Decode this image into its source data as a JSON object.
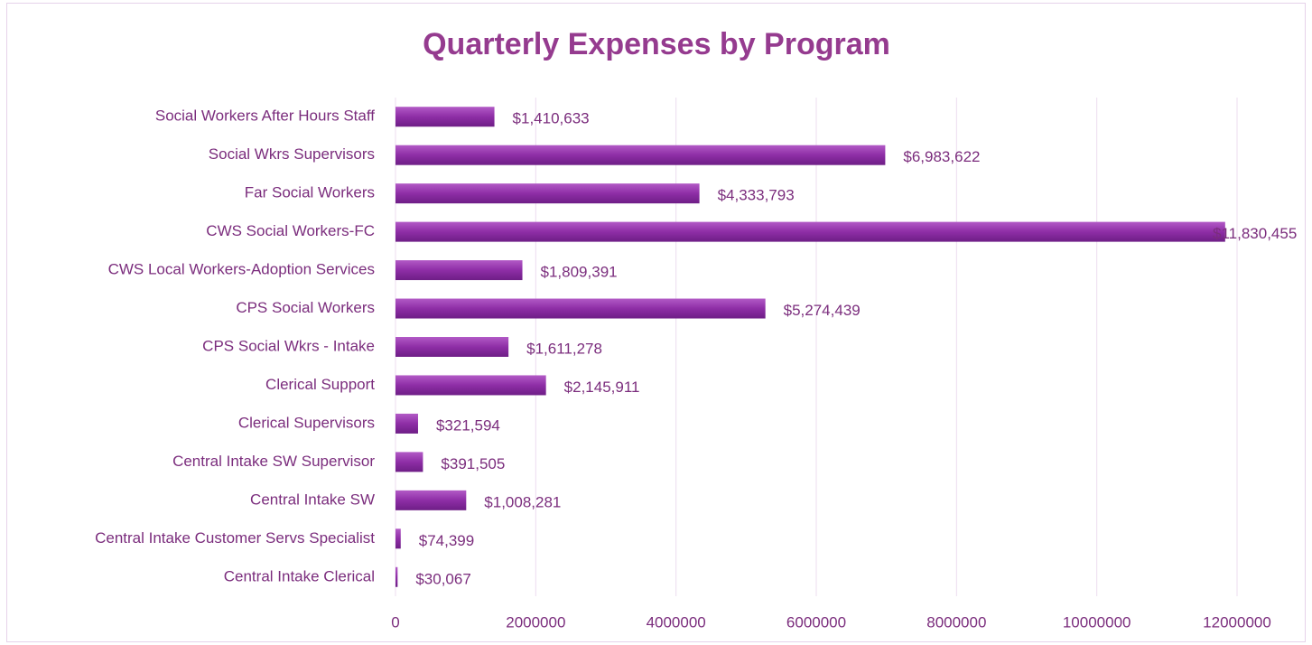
{
  "chart_data": {
    "type": "bar",
    "orientation": "horizontal",
    "title": "Quarterly Expenses by Program",
    "categories": [
      "Social Workers After Hours Staff",
      "Social Wkrs Supervisors",
      "Far Social Workers",
      "CWS Social Workers-FC",
      "CWS Local Workers-Adoption Services",
      "CPS Social Workers",
      "CPS Social Wkrs - Intake",
      "Clerical Support",
      "Clerical Supervisors",
      "Central Intake SW Supervisor",
      "Central Intake SW",
      "Central Intake Customer Servs Specialist",
      "Central Intake Clerical"
    ],
    "values": [
      1410633,
      6983622,
      4333793,
      11830455,
      1809391,
      5274439,
      1611278,
      2145911,
      321594,
      391505,
      1008281,
      74399,
      30067
    ],
    "value_labels": [
      "$1,410,633",
      "$6,983,622",
      "$4,333,793",
      "$11,830,455",
      "$1,809,391",
      "$5,274,439",
      "$1,611,278",
      "$2,145,911",
      "$321,594",
      "$391,505",
      "$1,008,281",
      "$74,399",
      "$30,067"
    ],
    "color": "#8e2ea6",
    "xlim": [
      0,
      12000000
    ],
    "xticks": [
      0,
      2000000,
      4000000,
      6000000,
      8000000,
      10000000,
      12000000
    ],
    "grid": true
  }
}
